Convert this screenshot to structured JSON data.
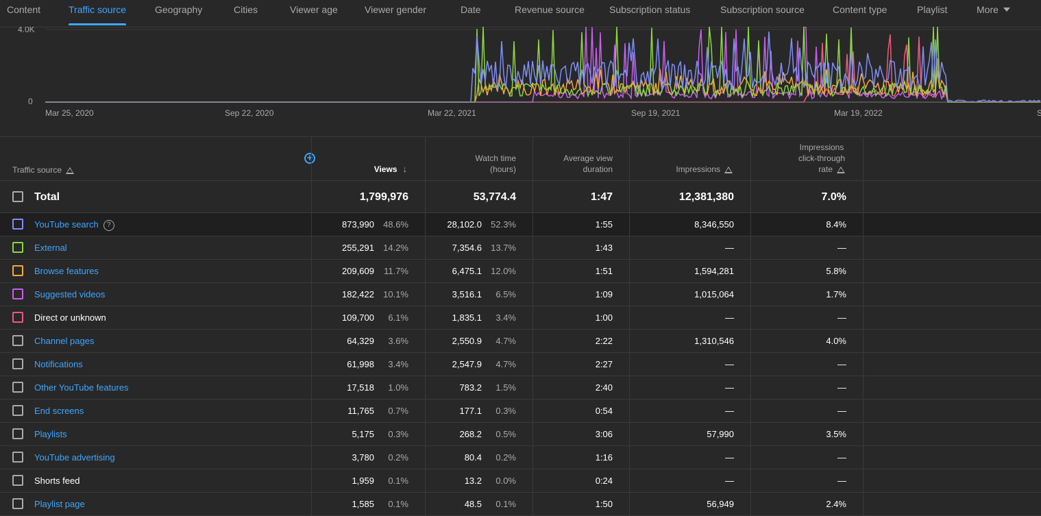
{
  "tabs": [
    {
      "label": "Content",
      "active": false
    },
    {
      "label": "Traffic source",
      "active": true
    },
    {
      "label": "Geography",
      "active": false
    },
    {
      "label": "Cities",
      "active": false
    },
    {
      "label": "Viewer age",
      "active": false
    },
    {
      "label": "Viewer gender",
      "active": false
    },
    {
      "label": "Date",
      "active": false
    },
    {
      "label": "Revenue source",
      "active": false
    },
    {
      "label": "Subscription status",
      "active": false
    },
    {
      "label": "Subscription source",
      "active": false
    },
    {
      "label": "Content type",
      "active": false
    },
    {
      "label": "Playlist",
      "active": false
    }
  ],
  "more_label": "More",
  "chart_data": {
    "type": "line",
    "y_tick_labels": [
      "4.0K",
      "0"
    ],
    "ylim": [
      0,
      4000
    ],
    "x_tick_labels": [
      "Mar 25, 2020",
      "Sep 22, 2020",
      "Mar 22, 2021",
      "Sep 19, 2021",
      "Mar 19, 2022",
      "S"
    ],
    "series_colors": [
      "#7e8ef7",
      "#8bd642",
      "#f4a93a",
      "#c95ef0",
      "#ef5a7d"
    ],
    "note_visible": "daily views per traffic source, mostly zero before Mar 2021"
  },
  "table": {
    "headers": {
      "source": "Traffic source",
      "views": "Views",
      "watch_time": [
        "Watch time",
        "(hours)"
      ],
      "avg_duration": [
        "Average view",
        "duration"
      ],
      "impressions": "Impressions",
      "ctr": [
        "Impressions",
        "click-through",
        "rate"
      ]
    },
    "total": {
      "label": "Total",
      "views": "1,799,976",
      "watch_time": "53,774.4",
      "avg_duration": "1:47",
      "impressions": "12,381,380",
      "ctr": "7.0%"
    },
    "rows": [
      {
        "name": "YouTube search",
        "link": true,
        "help": true,
        "color": "#7e8ef7",
        "views": "873,990",
        "views_pct": "48.6%",
        "watch": "28,102.0",
        "watch_pct": "52.3%",
        "avg": "1:55",
        "impr": "8,346,550",
        "ctr": "8.4%"
      },
      {
        "name": "External",
        "link": true,
        "help": false,
        "color": "#8bd642",
        "views": "255,291",
        "views_pct": "14.2%",
        "watch": "7,354.6",
        "watch_pct": "13.7%",
        "avg": "1:43",
        "impr": "—",
        "ctr": "—"
      },
      {
        "name": "Browse features",
        "link": true,
        "help": false,
        "color": "#f4a93a",
        "views": "209,609",
        "views_pct": "11.7%",
        "watch": "6,475.1",
        "watch_pct": "12.0%",
        "avg": "1:51",
        "impr": "1,594,281",
        "ctr": "5.8%"
      },
      {
        "name": "Suggested videos",
        "link": true,
        "help": false,
        "color": "#c95ef0",
        "views": "182,422",
        "views_pct": "10.1%",
        "watch": "3,516.1",
        "watch_pct": "6.5%",
        "avg": "1:09",
        "impr": "1,015,064",
        "ctr": "1.7%"
      },
      {
        "name": "Direct or unknown",
        "link": false,
        "help": false,
        "color": "#ef5a7d",
        "views": "109,700",
        "views_pct": "6.1%",
        "watch": "1,835.1",
        "watch_pct": "3.4%",
        "avg": "1:00",
        "impr": "—",
        "ctr": "—"
      },
      {
        "name": "Channel pages",
        "link": true,
        "help": false,
        "color": "#aaaaaa",
        "views": "64,329",
        "views_pct": "3.6%",
        "watch": "2,550.9",
        "watch_pct": "4.7%",
        "avg": "2:22",
        "impr": "1,310,546",
        "ctr": "4.0%"
      },
      {
        "name": "Notifications",
        "link": true,
        "help": false,
        "color": "#aaaaaa",
        "views": "61,998",
        "views_pct": "3.4%",
        "watch": "2,547.9",
        "watch_pct": "4.7%",
        "avg": "2:27",
        "impr": "—",
        "ctr": "—"
      },
      {
        "name": "Other YouTube features",
        "link": true,
        "help": false,
        "color": "#aaaaaa",
        "views": "17,518",
        "views_pct": "1.0%",
        "watch": "783.2",
        "watch_pct": "1.5%",
        "avg": "2:40",
        "impr": "—",
        "ctr": "—"
      },
      {
        "name": "End screens",
        "link": true,
        "help": false,
        "color": "#aaaaaa",
        "views": "11,765",
        "views_pct": "0.7%",
        "watch": "177.1",
        "watch_pct": "0.3%",
        "avg": "0:54",
        "impr": "—",
        "ctr": "—"
      },
      {
        "name": "Playlists",
        "link": true,
        "help": false,
        "color": "#aaaaaa",
        "views": "5,175",
        "views_pct": "0.3%",
        "watch": "268.2",
        "watch_pct": "0.5%",
        "avg": "3:06",
        "impr": "57,990",
        "ctr": "3.5%"
      },
      {
        "name": "YouTube advertising",
        "link": true,
        "help": false,
        "color": "#aaaaaa",
        "views": "3,780",
        "views_pct": "0.2%",
        "watch": "80.4",
        "watch_pct": "0.2%",
        "avg": "1:16",
        "impr": "—",
        "ctr": "—"
      },
      {
        "name": "Shorts feed",
        "link": false,
        "help": false,
        "color": "#aaaaaa",
        "views": "1,959",
        "views_pct": "0.1%",
        "watch": "13.2",
        "watch_pct": "0.0%",
        "avg": "0:24",
        "impr": "—",
        "ctr": "—"
      },
      {
        "name": "Playlist page",
        "link": true,
        "help": false,
        "color": "#aaaaaa",
        "views": "1,585",
        "views_pct": "0.1%",
        "watch": "48.5",
        "watch_pct": "0.1%",
        "avg": "1:50",
        "impr": "56,949",
        "ctr": "2.4%"
      }
    ]
  }
}
